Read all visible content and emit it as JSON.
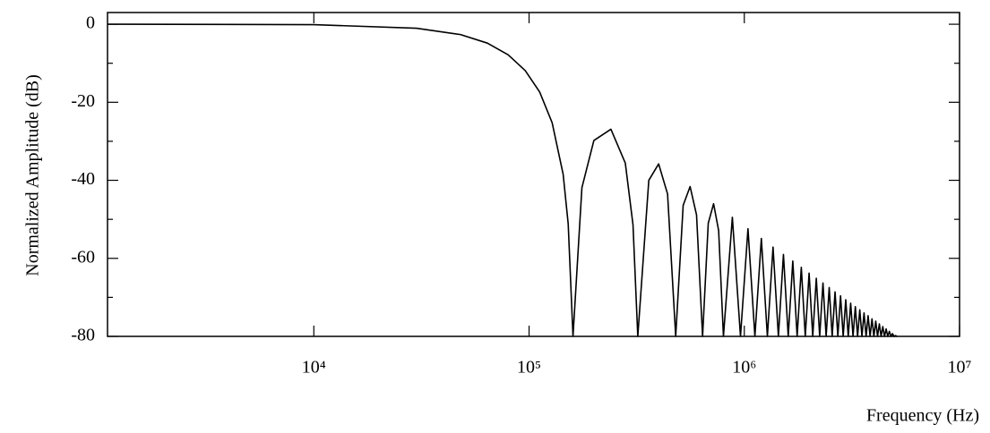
{
  "chart_data": {
    "type": "line",
    "xlabel": "Frequency (Hz)",
    "ylabel": "Normalized Amplitude (dB)",
    "xscale": "log",
    "color": "#000000",
    "xlim": [
      1100,
      10000000
    ],
    "ylim": [
      -80,
      3
    ],
    "xticks": [
      {
        "value": 10000,
        "label": "10⁴"
      },
      {
        "value": 100000,
        "label": "10⁵"
      },
      {
        "value": 1000000,
        "label": "10⁶"
      },
      {
        "value": 10000000,
        "label": "10⁷"
      }
    ],
    "yticks": [
      0,
      -20,
      -40,
      -60,
      -80
    ],
    "yminor_ticks": [
      -10,
      -30,
      -50,
      -70
    ],
    "x": [
      1100,
      10000,
      30000,
      48000,
      64000,
      80000,
      96000,
      112000,
      128000,
      144000,
      152000,
      160000,
      176000,
      200000,
      240000,
      280000,
      304000,
      320000,
      360000,
      400000,
      440000,
      480000,
      520000,
      560000,
      600000,
      640000,
      680000,
      720000,
      760000,
      800000,
      880000,
      960000,
      1040000,
      1120000,
      1200000,
      1280000,
      1360000,
      1440000,
      1520000,
      1600000,
      1680000,
      1760000,
      1840000,
      1920000,
      2000000,
      2080000,
      2160000,
      2240000,
      2320000,
      2400000,
      2480000,
      2560000,
      2640000,
      2720000,
      2800000,
      2880000,
      2960000,
      3040000,
      3120000,
      3200000,
      3280000,
      3360000,
      3440000,
      3520000,
      3600000,
      3680000,
      3760000,
      3840000,
      3920000,
      4000000,
      4080000,
      4160000,
      4240000,
      4320000,
      4400000,
      4480000,
      4560000,
      4640000,
      4720000,
      4800000,
      4880000,
      4960000,
      5040000,
      5120000
    ],
    "values": [
      0,
      -0.11,
      -1.02,
      -2.65,
      -4.84,
      -7.84,
      -11.88,
      -17.37,
      -25.24,
      -38.45,
      -51.2,
      -80,
      -41.9,
      -29.8,
      -26.9,
      -35.6,
      -51.4,
      -80,
      -40,
      -35.8,
      -43.5,
      -80,
      -46.4,
      -41.6,
      -48.9,
      -80,
      -51,
      -46,
      -52.9,
      -80,
      -49.5,
      -80,
      -52.4,
      -80,
      -54.9,
      -80,
      -57.1,
      -80,
      -59.0,
      -80,
      -60.7,
      -80,
      -62.3,
      -80,
      -63.8,
      -80,
      -65.1,
      -80,
      -66.3,
      -80,
      -67.5,
      -80,
      -68.6,
      -80,
      -69.6,
      -80,
      -70.6,
      -80,
      -71.5,
      -80,
      -72.4,
      -80,
      -73.2,
      -80,
      -74.0,
      -80,
      -74.7,
      -80,
      -75.5,
      -80,
      -76.1,
      -80,
      -76.8,
      -80,
      -77.5,
      -80,
      -78.1,
      -80,
      -78.7,
      -80,
      -79.3,
      -80,
      -79.8,
      -80
    ]
  }
}
